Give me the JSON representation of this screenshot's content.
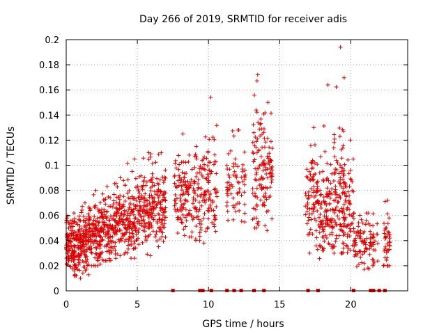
{
  "chart_data": {
    "type": "scatter",
    "title": "Day 266 of 2019, SRMTID for receiver adis",
    "xlabel": "GPS time / hours",
    "ylabel": "SRMTID / TECUs",
    "xlim": [
      0,
      24
    ],
    "ylim": [
      0,
      0.2
    ],
    "xticks": [
      0,
      5,
      10,
      15,
      20
    ],
    "xtick_labels": [
      "0",
      "5",
      "10",
      "15",
      "20"
    ],
    "yticks": [
      0,
      0.02,
      0.04,
      0.06,
      0.08,
      0.1,
      0.12,
      0.14,
      0.16,
      0.18,
      0.2
    ],
    "ytick_labels": [
      "0",
      "0.02",
      "0.04",
      "0.06",
      "0.08",
      "0.1",
      "0.12",
      "0.14",
      "0.16",
      "0.18",
      "0.2"
    ],
    "grid": true,
    "marker": "+",
    "color": "#dd0000",
    "series": [
      {
        "name": "SRMTID",
        "clusters": [
          {
            "x": [
              0.0,
              0.9
            ],
            "center": 0.036,
            "spread": 0.012,
            "min": 0.012,
            "max": 0.062,
            "n": 150
          },
          {
            "x": [
              0.9,
              1.6
            ],
            "center": 0.04,
            "spread": 0.012,
            "min": 0.01,
            "max": 0.07,
            "n": 110
          },
          {
            "x": [
              1.6,
              2.4
            ],
            "center": 0.044,
            "spread": 0.013,
            "min": 0.02,
            "max": 0.08,
            "n": 110
          },
          {
            "x": [
              2.4,
              3.2
            ],
            "center": 0.05,
            "spread": 0.013,
            "min": 0.024,
            "max": 0.083,
            "n": 100
          },
          {
            "x": [
              3.2,
              4.2
            ],
            "center": 0.055,
            "spread": 0.014,
            "min": 0.022,
            "max": 0.09,
            "n": 120
          },
          {
            "x": [
              4.2,
              5.2
            ],
            "center": 0.06,
            "spread": 0.015,
            "min": 0.026,
            "max": 0.105,
            "n": 120
          },
          {
            "x": [
              5.2,
              6.2
            ],
            "center": 0.064,
            "spread": 0.015,
            "min": 0.028,
            "max": 0.11,
            "n": 120
          },
          {
            "x": [
              6.2,
              7.0
            ],
            "center": 0.066,
            "spread": 0.014,
            "min": 0.035,
            "max": 0.11,
            "n": 90
          },
          {
            "x": [
              7.6,
              8.6
            ],
            "center": 0.078,
            "spread": 0.016,
            "min": 0.035,
            "max": 0.125,
            "n": 90
          },
          {
            "x": [
              8.6,
              9.5
            ],
            "center": 0.072,
            "spread": 0.016,
            "min": 0.04,
            "max": 0.115,
            "n": 70
          },
          {
            "x": [
              9.5,
              10.6
            ],
            "center": 0.082,
            "spread": 0.022,
            "min": 0.038,
            "max": 0.154,
            "n": 90
          },
          {
            "x": [
              11.3,
              12.6
            ],
            "center": 0.085,
            "spread": 0.016,
            "min": 0.05,
            "max": 0.128,
            "n": 70
          },
          {
            "x": [
              13.1,
              13.7
            ],
            "center": 0.095,
            "spread": 0.03,
            "min": 0.05,
            "max": 0.172,
            "n": 60
          },
          {
            "x": [
              13.7,
              14.5
            ],
            "center": 0.095,
            "spread": 0.022,
            "min": 0.048,
            "max": 0.15,
            "n": 80
          },
          {
            "x": [
              16.8,
              17.8
            ],
            "center": 0.075,
            "spread": 0.02,
            "min": 0.03,
            "max": 0.13,
            "n": 90
          },
          {
            "x": [
              17.8,
              18.8
            ],
            "center": 0.062,
            "spread": 0.018,
            "min": 0.02,
            "max": 0.164,
            "n": 110
          },
          {
            "x": [
              18.8,
              19.6
            ],
            "center": 0.07,
            "spread": 0.025,
            "min": 0.03,
            "max": 0.194,
            "n": 110
          },
          {
            "x": [
              19.6,
              20.2
            ],
            "center": 0.065,
            "spread": 0.018,
            "min": 0.03,
            "max": 0.12,
            "n": 50
          },
          {
            "x": [
              20.2,
              21.9
            ],
            "center": 0.038,
            "spread": 0.01,
            "min": 0.016,
            "max": 0.062,
            "n": 100
          },
          {
            "x": [
              22.3,
              22.8
            ],
            "center": 0.04,
            "spread": 0.01,
            "min": 0.02,
            "max": 0.072,
            "n": 40
          }
        ],
        "zero_markers": [
          7.5,
          9.4,
          9.6,
          10.2,
          11.3,
          11.8,
          12.3,
          13.2,
          13.9,
          17.0,
          17.7,
          20.2,
          21.4,
          21.6,
          22.0,
          22.4
        ]
      }
    ]
  }
}
